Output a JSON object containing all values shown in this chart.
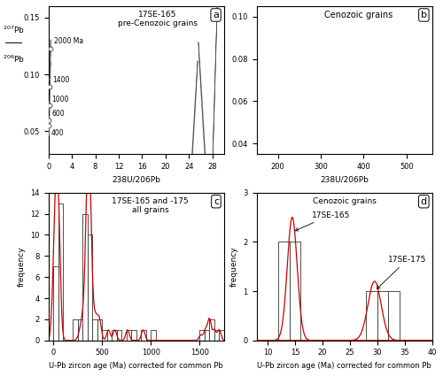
{
  "panel_a": {
    "title": "17SE-165\npre-Cenozoic grains",
    "xlabel": "238U/206Pb",
    "ylabel": "207Pb\n206Pb",
    "xlim": [
      0,
      30
    ],
    "ylim": [
      0.03,
      0.16
    ],
    "panel_label": "a",
    "yticks": [
      0.05,
      0.1,
      0.15
    ],
    "xticks": [
      0,
      4,
      8,
      12,
      16,
      20,
      24,
      28
    ]
  },
  "panel_b": {
    "title": "Cenozoic grains",
    "xlabel": "238U/206Pb",
    "xlim": [
      150,
      560
    ],
    "ylim": [
      0.035,
      0.105
    ],
    "panel_label": "b",
    "yticks": [
      0.04,
      0.06,
      0.08,
      0.1
    ],
    "xticks": [
      200,
      300,
      400,
      500
    ]
  },
  "panel_c": {
    "title": "17SE-165 and -175\nall grains",
    "xlabel": "U-Pb zircon age (Ma) corrected for common Pb",
    "ylabel": "frequency",
    "xlim": [
      -50,
      1750
    ],
    "ylim": [
      0,
      14
    ],
    "panel_label": "c",
    "hist_bins": [
      0,
      50,
      100,
      150,
      200,
      250,
      300,
      350,
      400,
      450,
      500,
      550,
      600,
      650,
      700,
      750,
      800,
      850,
      900,
      950,
      1000,
      1050,
      1100,
      1150,
      1200,
      1250,
      1300,
      1350,
      1400,
      1450,
      1500,
      1550,
      1600,
      1650,
      1700,
      1750
    ],
    "hist_values": [
      7,
      13,
      0,
      0,
      2,
      2,
      12,
      10,
      2,
      2,
      1,
      0,
      1,
      1,
      0,
      1,
      1,
      0,
      1,
      0,
      1,
      0,
      0,
      0,
      0,
      0,
      0,
      0,
      0,
      0,
      1,
      1,
      2,
      1,
      1
    ],
    "yticks": [
      0,
      2,
      4,
      6,
      8,
      10,
      12,
      14
    ],
    "xticks": [
      0,
      500,
      1000,
      1500
    ]
  },
  "panel_d": {
    "title": "Cenozoic grains",
    "xlabel": "U-Pb zircon age (Ma) corrected for common Pb",
    "ylabel": "frequency",
    "xlim": [
      8,
      40
    ],
    "ylim": [
      0,
      3
    ],
    "panel_label": "d",
    "yticks": [
      0,
      1,
      2,
      3
    ],
    "xticks": [
      10,
      15,
      20,
      25,
      30,
      35,
      40
    ],
    "hist_bins_165": [
      12,
      14,
      16,
      18
    ],
    "hist_values_165": [
      2,
      2,
      0
    ],
    "hist_bins_175": [
      28,
      30,
      32,
      34,
      36
    ],
    "hist_values_175": [
      1,
      1,
      1,
      0
    ]
  },
  "bg_color": "#ffffff",
  "line_color": "#555555",
  "red_color": "#cc0000"
}
